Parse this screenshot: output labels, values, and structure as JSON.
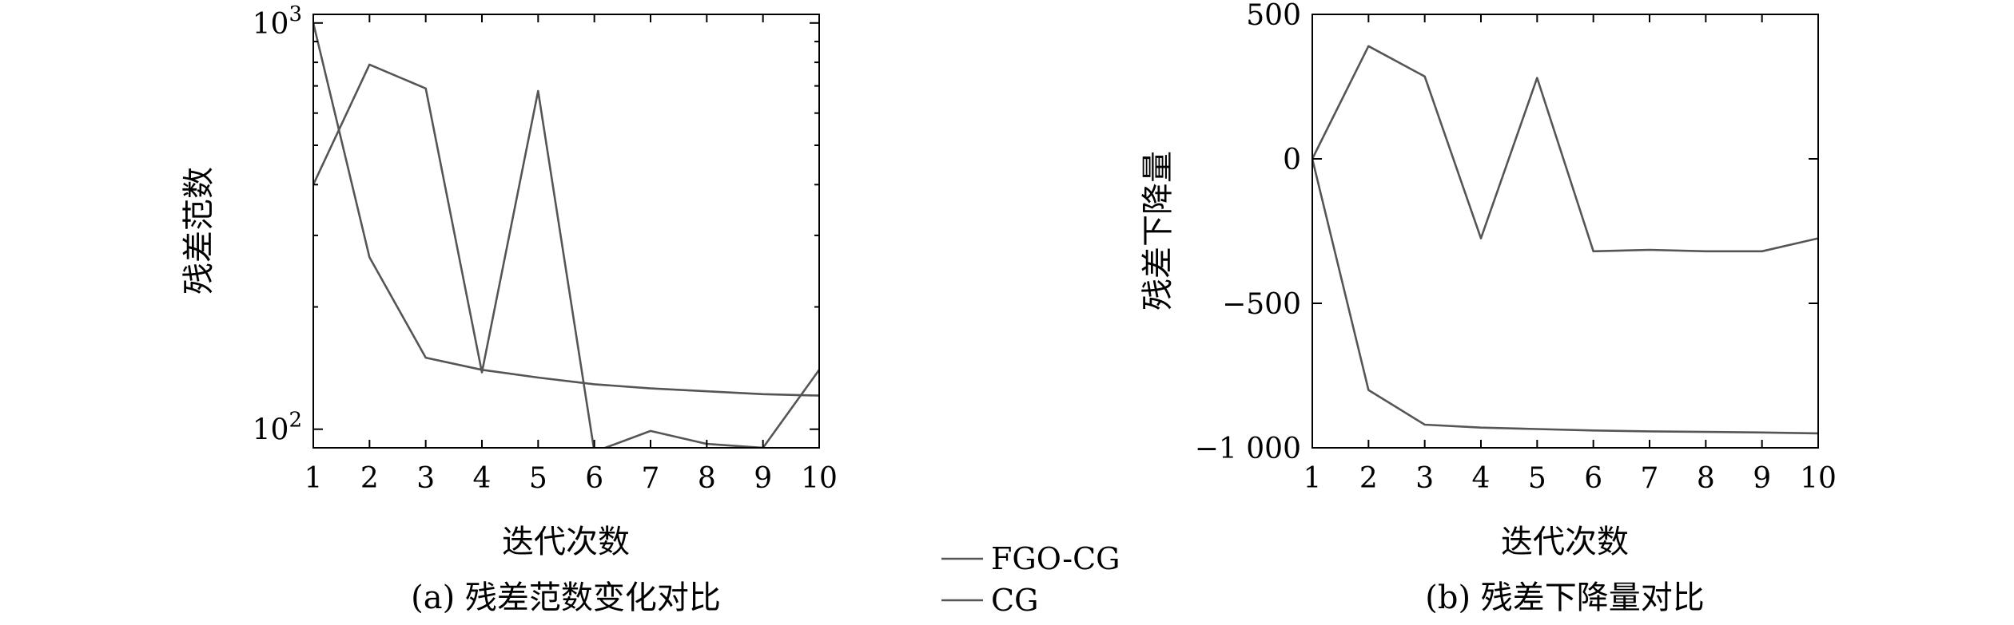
{
  "colors": {
    "series_line": "#555555",
    "highlight_red": "#e8342a",
    "highlight_orange": "#f2a21a",
    "highlight_blue": "#2a8be0"
  },
  "legend": {
    "items": [
      {
        "label": "FGO-CG"
      },
      {
        "label": "CG"
      }
    ]
  },
  "chart_data": [
    {
      "type": "line",
      "caption": "(a) 残差范数变化对比",
      "title": "",
      "xlabel": "迭代次数",
      "ylabel": "残差范数",
      "yscale": "log",
      "xlim": [
        1,
        10
      ],
      "ylim": [
        90,
        1050
      ],
      "x": [
        1,
        2,
        3,
        4,
        5,
        6,
        7,
        8,
        9,
        10
      ],
      "xticks": [
        "1",
        "2",
        "3",
        "4",
        "5",
        "6",
        "7",
        "8",
        "9",
        "10"
      ],
      "yticks": [
        {
          "value": 100,
          "base": "10",
          "exp": "2"
        },
        {
          "value": 1000,
          "base": "10",
          "exp": "3"
        }
      ],
      "grid": false,
      "series": [
        {
          "name": "FGO-CG",
          "values": [
            1000,
            265,
            150,
            140,
            134,
            129,
            126,
            124,
            122,
            121
          ]
        },
        {
          "name": "CG",
          "values": [
            400,
            790,
            690,
            138,
            680,
            88,
            99,
            92,
            90,
            140
          ]
        }
      ]
    },
    {
      "type": "line",
      "caption": "(b) 残差下降量对比",
      "title": "",
      "xlabel": "迭代次数",
      "ylabel": "残差下降量",
      "xlim": [
        1,
        10
      ],
      "ylim": [
        -1000,
        500
      ],
      "x": [
        1,
        2,
        3,
        4,
        5,
        6,
        7,
        8,
        9,
        10
      ],
      "xticks": [
        "1",
        "2",
        "3",
        "4",
        "5",
        "6",
        "7",
        "8",
        "9",
        "10"
      ],
      "yticks": [
        {
          "value": 500,
          "label": "500"
        },
        {
          "value": 0,
          "label": "0"
        },
        {
          "value": -500,
          "label": "−500"
        },
        {
          "value": -1000,
          "label": "−1 000"
        }
      ],
      "grid": false,
      "series": [
        {
          "name": "FGO-CG",
          "values": [
            0,
            -800,
            -920,
            -930,
            -935,
            -940,
            -943,
            -945,
            -947,
            -950
          ]
        },
        {
          "name": "CG",
          "values": [
            0,
            390,
            285,
            -275,
            280,
            -320,
            -315,
            -320,
            -320,
            -275
          ]
        }
      ]
    }
  ]
}
